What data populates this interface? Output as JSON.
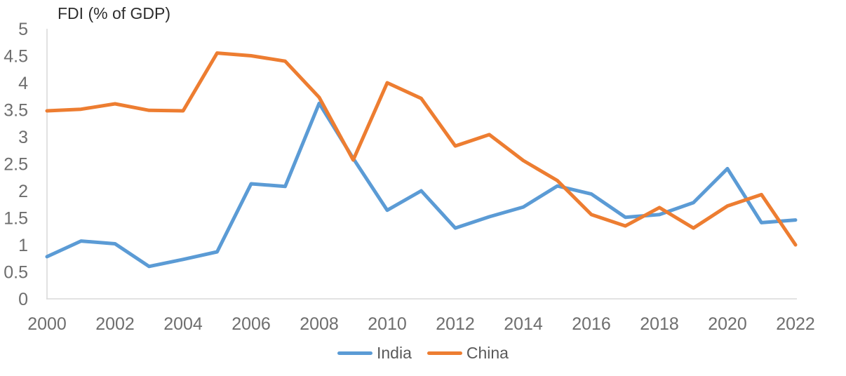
{
  "chart_data": {
    "type": "line",
    "title": "FDI (% of GDP)",
    "x": [
      2000,
      2001,
      2002,
      2003,
      2004,
      2005,
      2006,
      2007,
      2008,
      2009,
      2010,
      2011,
      2012,
      2013,
      2014,
      2015,
      2016,
      2017,
      2018,
      2019,
      2020,
      2021,
      2022
    ],
    "series": [
      {
        "name": "India",
        "color": "#5B9BD5",
        "values": [
          0.78,
          1.07,
          1.02,
          0.6,
          0.73,
          0.87,
          2.13,
          2.08,
          3.62,
          2.6,
          1.64,
          2.0,
          1.31,
          1.52,
          1.7,
          2.09,
          1.94,
          1.51,
          1.56,
          1.78,
          2.41,
          1.41,
          1.46
        ]
      },
      {
        "name": "China",
        "color": "#ED7D31",
        "values": [
          3.48,
          3.51,
          3.61,
          3.49,
          3.48,
          4.55,
          4.5,
          4.4,
          3.73,
          2.57,
          4.0,
          3.71,
          2.83,
          3.04,
          2.56,
          2.19,
          1.56,
          1.35,
          1.69,
          1.31,
          1.72,
          1.93,
          1.0
        ]
      }
    ],
    "xlabel": "",
    "ylabel": "",
    "ylim": [
      0,
      5
    ],
    "y_ticks": [
      "0",
      "0.5",
      "1",
      "1.5",
      "2",
      "2.5",
      "3",
      "3.5",
      "4",
      "4.5",
      "5"
    ],
    "x_ticks": [
      "2000",
      "2002",
      "2004",
      "2006",
      "2008",
      "2010",
      "2012",
      "2014",
      "2016",
      "2018",
      "2020",
      "2022"
    ],
    "grid": false,
    "legend_position": "bottom",
    "legend": [
      "India",
      "China"
    ]
  },
  "colors": {
    "axis_line": "#D9D9D9",
    "tick_label": "#6E6E6E",
    "legend_label": "#595959",
    "title": "#2E2E2E"
  }
}
